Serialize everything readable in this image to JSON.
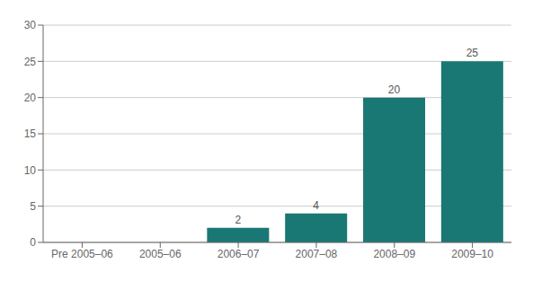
{
  "chart_data": {
    "type": "bar",
    "categories": [
      "Pre 2005–06",
      "2005–06",
      "2006–07",
      "2007–08",
      "2008–09",
      "2009–10"
    ],
    "values": [
      0,
      0,
      2,
      4,
      20,
      25
    ],
    "color": "#1a7874",
    "ylim": [
      0,
      30
    ],
    "yticks": [
      0,
      5,
      10,
      15,
      20,
      25,
      30
    ],
    "grid": true,
    "data_labels": true
  }
}
